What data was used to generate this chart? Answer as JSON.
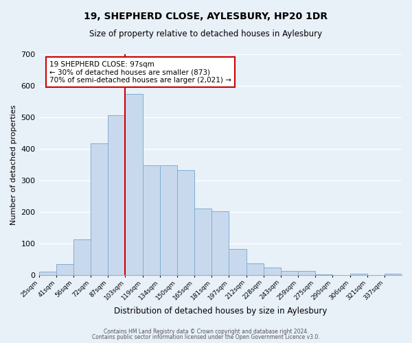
{
  "title": "19, SHEPHERD CLOSE, AYLESBURY, HP20 1DR",
  "subtitle": "Size of property relative to detached houses in Aylesbury",
  "xlabel": "Distribution of detached houses by size in Aylesbury",
  "ylabel": "Number of detached properties",
  "bin_labels": [
    "25sqm",
    "41sqm",
    "56sqm",
    "72sqm",
    "87sqm",
    "103sqm",
    "119sqm",
    "134sqm",
    "150sqm",
    "165sqm",
    "181sqm",
    "197sqm",
    "212sqm",
    "228sqm",
    "243sqm",
    "259sqm",
    "275sqm",
    "290sqm",
    "306sqm",
    "321sqm",
    "337sqm"
  ],
  "bin_values": [
    10,
    35,
    113,
    418,
    507,
    575,
    348,
    347,
    333,
    210,
    203,
    83,
    38,
    25,
    13,
    13,
    2,
    0,
    5,
    0,
    5
  ],
  "bar_color": "#c9d9ed",
  "bar_edgecolor": "#7eadd4",
  "vline_label_idx": 5,
  "vline_color": "#cc0000",
  "ylim": [
    0,
    700
  ],
  "yticks": [
    0,
    100,
    200,
    300,
    400,
    500,
    600,
    700
  ],
  "bg_color": "#e8f0f8",
  "grid_color": "#ffffff",
  "annotation_title": "19 SHEPHERD CLOSE: 97sqm",
  "annotation_line1": "← 30% of detached houses are smaller (873)",
  "annotation_line2": "70% of semi-detached houses are larger (2,021) →",
  "annotation_box_edgecolor": "#cc0000",
  "footer_line1": "Contains HM Land Registry data © Crown copyright and database right 2024.",
  "footer_line2": "Contains public sector information licensed under the Open Government Licence v3.0."
}
